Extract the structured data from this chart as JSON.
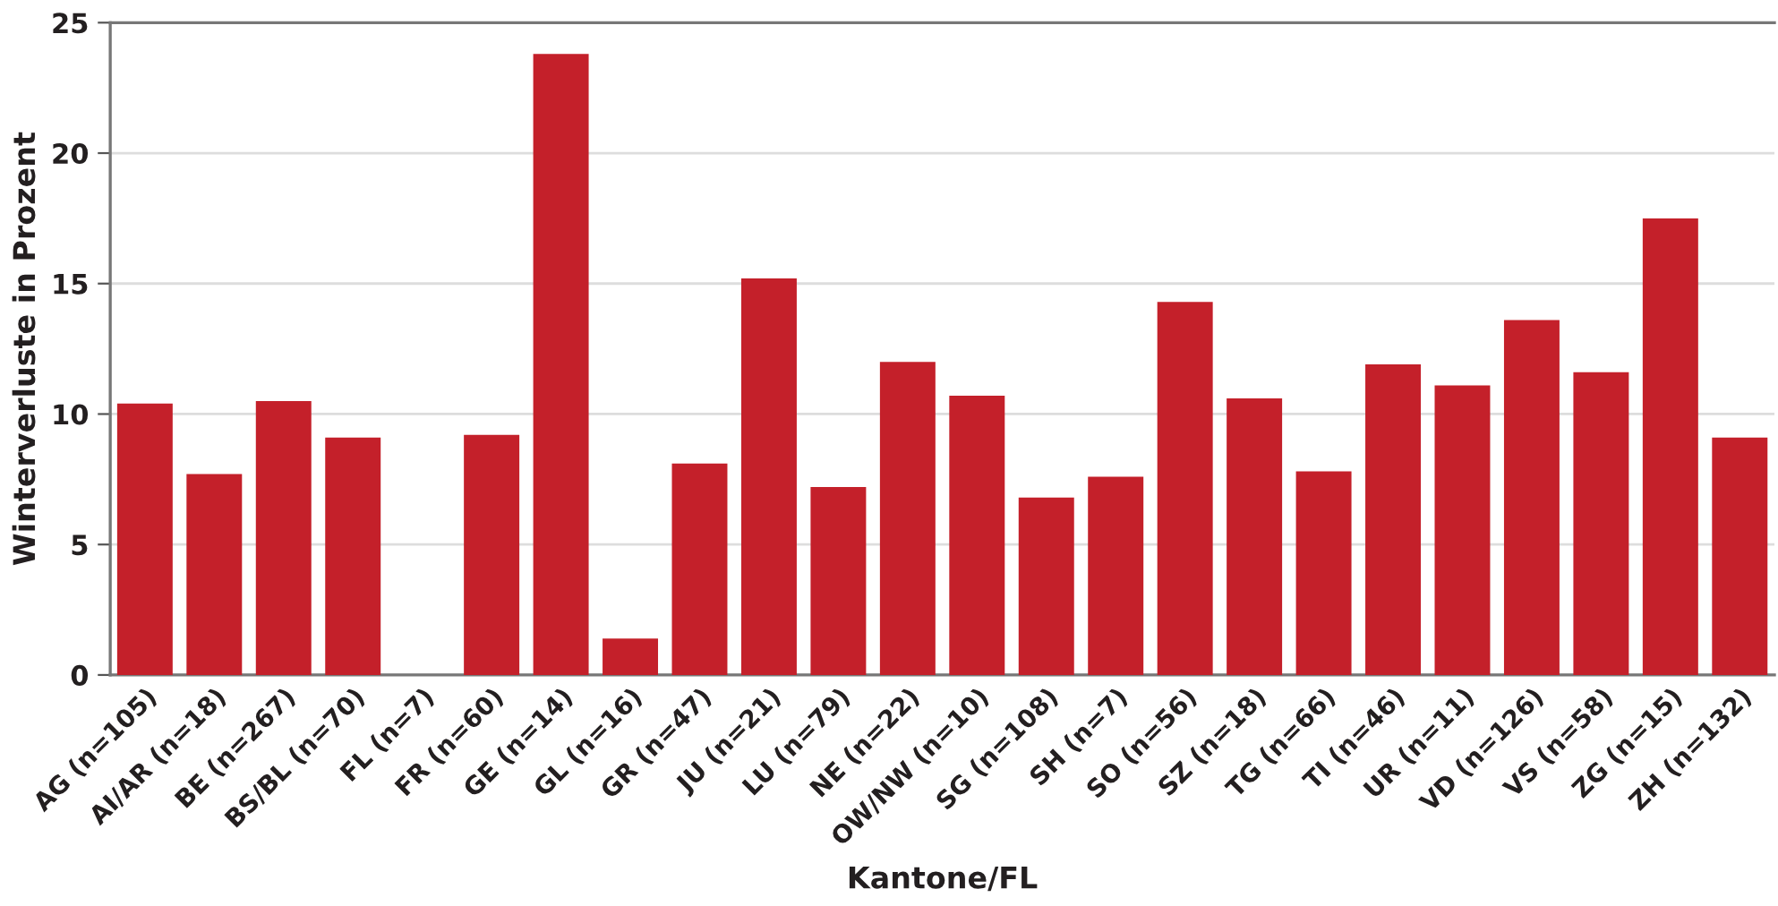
{
  "chart_data": {
    "type": "bar",
    "xlabel": "Kantone/FL",
    "ylabel": "Winterverluste in Prozent",
    "categories": [
      "AG (n=105)",
      "AI/AR (n=18)",
      "BE (n=267)",
      "BS/BL (n=70)",
      "FL (n=7)",
      "FR (n=60)",
      "GE (n=14)",
      "GL (n=16)",
      "GR (n=47)",
      "JU (n=21)",
      "LU (n=79)",
      "NE (n=22)",
      "OW/NW (n=10)",
      "SG (n=108)",
      "SH (n=7)",
      "SO (n=56)",
      "SZ (n=18)",
      "TG (n=66)",
      "TI (n=46)",
      "UR (n=11)",
      "VD (n=126)",
      "VS (n=58)",
      "ZG (n=15)",
      "ZH (n=132)"
    ],
    "values": [
      10.4,
      7.7,
      10.5,
      9.1,
      0,
      9.2,
      23.8,
      1.4,
      8.1,
      15.2,
      7.2,
      12.0,
      10.7,
      6.8,
      7.6,
      14.3,
      10.6,
      7.8,
      11.9,
      11.1,
      13.6,
      11.6,
      17.5,
      9.1
    ],
    "color": "#c4202a",
    "ylim": [
      0,
      25
    ],
    "yticks": [
      0,
      5,
      10,
      15,
      20,
      25
    ],
    "grid": "y",
    "legend": false
  }
}
